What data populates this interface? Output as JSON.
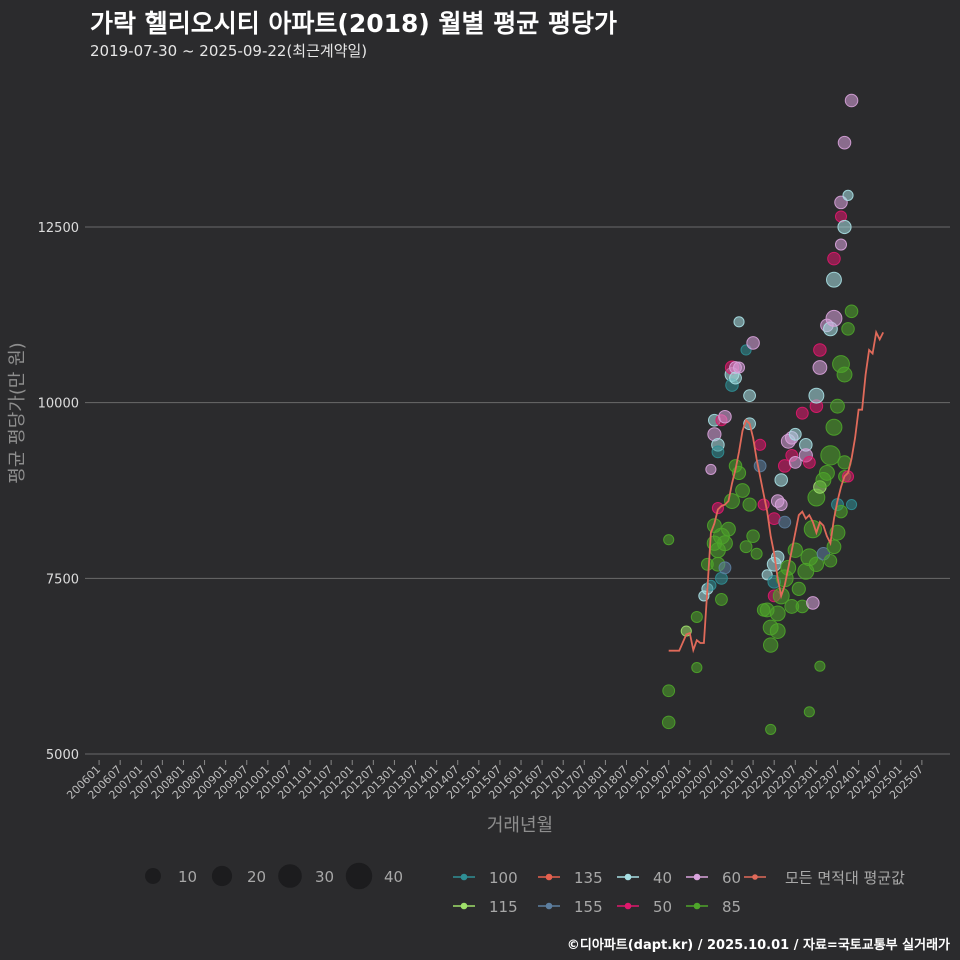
{
  "header": {
    "title": "가락 헬리오시티 아파트(2018) 월별 평균 평당가",
    "subtitle": "2019-07-30 ~ 2025-09-22(최근계약일)"
  },
  "credit": "©디아파트(dapt.kr) / 2025.10.01 / 자료=국토교통부 실거래가",
  "chart_data": {
    "type": "scatter",
    "xlabel": "거래년월",
    "ylabel": "평균 평당가(만 원)",
    "ylim": [
      5000,
      14600
    ],
    "y_ticks": [
      5000,
      7500,
      10000,
      12500
    ],
    "x_range": [
      "2005-09",
      "2026-03"
    ],
    "x_ticks": [
      "200601",
      "200607",
      "200701",
      "200707",
      "200801",
      "200807",
      "200901",
      "200907",
      "201001",
      "201007",
      "201101",
      "201107",
      "201201",
      "201207",
      "201301",
      "201307",
      "201401",
      "201407",
      "201501",
      "201507",
      "201601",
      "201607",
      "201701",
      "201707",
      "201801",
      "201807",
      "201901",
      "201907",
      "202001",
      "202007",
      "202101",
      "202107",
      "202201",
      "202207",
      "202301",
      "202307",
      "202401",
      "202407",
      "202501",
      "202507"
    ],
    "grid": "horizontal",
    "size_legend": [
      10,
      20,
      30,
      40
    ],
    "series": [
      {
        "name": "100",
        "color": "#2f8f95"
      },
      {
        "name": "135",
        "color": "#e6614f"
      },
      {
        "name": "40",
        "color": "#a8e0e4"
      },
      {
        "name": "60",
        "color": "#d9a3dc"
      },
      {
        "name": "115",
        "color": "#9fe06a"
      },
      {
        "name": "155",
        "color": "#5d7fa0"
      },
      {
        "name": "50",
        "color": "#e0186d"
      },
      {
        "name": "85",
        "color": "#4ea52a"
      }
    ],
    "average_line": {
      "name": "모든 면적대 평균값",
      "color": "#e06a5a",
      "points": [
        [
          "2019-07",
          6470
        ],
        [
          "2019-08",
          6470
        ],
        [
          "2019-09",
          6470
        ],
        [
          "2019-10",
          6470
        ],
        [
          "2019-12",
          6700
        ],
        [
          "2020-01",
          6720
        ],
        [
          "2020-02",
          6480
        ],
        [
          "2020-03",
          6620
        ],
        [
          "2020-04",
          6580
        ],
        [
          "2020-05",
          6580
        ],
        [
          "2020-06",
          7350
        ],
        [
          "2020-07",
          8150
        ],
        [
          "2020-08",
          8280
        ],
        [
          "2020-09",
          8480
        ],
        [
          "2020-10",
          8530
        ],
        [
          "2020-11",
          8550
        ],
        [
          "2020-12",
          8600
        ],
        [
          "2021-01",
          8850
        ],
        [
          "2021-02",
          9050
        ],
        [
          "2021-03",
          9300
        ],
        [
          "2021-04",
          9600
        ],
        [
          "2021-05",
          9750
        ],
        [
          "2021-06",
          9700
        ],
        [
          "2021-07",
          9500
        ],
        [
          "2021-08",
          9200
        ],
        [
          "2021-09",
          8950
        ],
        [
          "2021-10",
          8700
        ],
        [
          "2021-11",
          8450
        ],
        [
          "2021-12",
          8100
        ],
        [
          "2022-01",
          7850
        ],
        [
          "2022-02",
          7500
        ],
        [
          "2022-03",
          7250
        ],
        [
          "2022-04",
          7400
        ],
        [
          "2022-05",
          7650
        ],
        [
          "2022-06",
          7900
        ],
        [
          "2022-07",
          8150
        ],
        [
          "2022-08",
          8400
        ],
        [
          "2022-09",
          8450
        ],
        [
          "2022-10",
          8350
        ],
        [
          "2022-11",
          8400
        ],
        [
          "2022-12",
          8300
        ],
        [
          "2023-01",
          8150
        ],
        [
          "2023-02",
          8300
        ],
        [
          "2023-03",
          8250
        ],
        [
          "2023-04",
          8100
        ],
        [
          "2023-05",
          8000
        ],
        [
          "2023-06",
          8350
        ],
        [
          "2023-07",
          8600
        ],
        [
          "2023-08",
          8800
        ],
        [
          "2023-09",
          8950
        ],
        [
          "2023-10",
          9000
        ],
        [
          "2023-11",
          9200
        ],
        [
          "2023-12",
          9500
        ],
        [
          "2024-01",
          9900
        ],
        [
          "2024-02",
          9900
        ],
        [
          "2024-03",
          10400
        ],
        [
          "2024-04",
          10750
        ],
        [
          "2024-05",
          10700
        ],
        [
          "2024-06",
          11000
        ],
        [
          "2024-07",
          10900
        ],
        [
          "2024-08",
          11000
        ]
      ]
    },
    "points": [
      {
        "x": "2019-07",
        "y": 8050,
        "s": "85",
        "n": 3
      },
      {
        "x": "2019-07",
        "y": 5900,
        "s": "85",
        "n": 5
      },
      {
        "x": "2019-07",
        "y": 5450,
        "s": "85",
        "n": 6
      },
      {
        "x": "2019-12",
        "y": 6750,
        "s": "115",
        "n": 3
      },
      {
        "x": "2020-03",
        "y": 6950,
        "s": "85",
        "n": 4
      },
      {
        "x": "2020-03",
        "y": 6230,
        "s": "85",
        "n": 3
      },
      {
        "x": "2020-05",
        "y": 7250,
        "s": "40",
        "n": 3
      },
      {
        "x": "2020-06",
        "y": 7700,
        "s": "85",
        "n": 5
      },
      {
        "x": "2020-06",
        "y": 7350,
        "s": "40",
        "n": 4
      },
      {
        "x": "2020-07",
        "y": 7400,
        "s": "100",
        "n": 3
      },
      {
        "x": "2020-07",
        "y": 9050,
        "s": "60",
        "n": 3
      },
      {
        "x": "2020-08",
        "y": 8250,
        "s": "85",
        "n": 8
      },
      {
        "x": "2020-08",
        "y": 8000,
        "s": "85",
        "n": 9
      },
      {
        "x": "2020-08",
        "y": 9750,
        "s": "40",
        "n": 5
      },
      {
        "x": "2020-08",
        "y": 9550,
        "s": "60",
        "n": 7
      },
      {
        "x": "2020-09",
        "y": 7700,
        "s": "85",
        "n": 8
      },
      {
        "x": "2020-09",
        "y": 7900,
        "s": "85",
        "n": 10
      },
      {
        "x": "2020-09",
        "y": 9400,
        "s": "40",
        "n": 6
      },
      {
        "x": "2020-09",
        "y": 9300,
        "s": "100",
        "n": 5
      },
      {
        "x": "2020-09",
        "y": 8500,
        "s": "50",
        "n": 4
      },
      {
        "x": "2020-10",
        "y": 8100,
        "s": "85",
        "n": 12
      },
      {
        "x": "2020-10",
        "y": 7500,
        "s": "100",
        "n": 5
      },
      {
        "x": "2020-10",
        "y": 7200,
        "s": "85",
        "n": 5
      },
      {
        "x": "2020-10",
        "y": 9750,
        "s": "50",
        "n": 4
      },
      {
        "x": "2020-11",
        "y": 8000,
        "s": "85",
        "n": 10
      },
      {
        "x": "2020-11",
        "y": 7650,
        "s": "155",
        "n": 5
      },
      {
        "x": "2020-11",
        "y": 9800,
        "s": "60",
        "n": 6
      },
      {
        "x": "2020-12",
        "y": 8200,
        "s": "85",
        "n": 8
      },
      {
        "x": "2021-01",
        "y": 10400,
        "s": "40",
        "n": 8
      },
      {
        "x": "2021-01",
        "y": 10250,
        "s": "100",
        "n": 6
      },
      {
        "x": "2021-01",
        "y": 10500,
        "s": "50",
        "n": 7
      },
      {
        "x": "2021-01",
        "y": 8600,
        "s": "85",
        "n": 10
      },
      {
        "x": "2021-02",
        "y": 10500,
        "s": "60",
        "n": 5
      },
      {
        "x": "2021-02",
        "y": 10350,
        "s": "40",
        "n": 5
      },
      {
        "x": "2021-02",
        "y": 9100,
        "s": "85",
        "n": 6
      },
      {
        "x": "2021-03",
        "y": 11150,
        "s": "40",
        "n": 3
      },
      {
        "x": "2021-03",
        "y": 10500,
        "s": "60",
        "n": 4
      },
      {
        "x": "2021-03",
        "y": 9000,
        "s": "85",
        "n": 7
      },
      {
        "x": "2021-04",
        "y": 8750,
        "s": "85",
        "n": 8
      },
      {
        "x": "2021-05",
        "y": 10750,
        "s": "100",
        "n": 3
      },
      {
        "x": "2021-05",
        "y": 7950,
        "s": "85",
        "n": 5
      },
      {
        "x": "2021-06",
        "y": 10100,
        "s": "40",
        "n": 5
      },
      {
        "x": "2021-06",
        "y": 9700,
        "s": "40",
        "n": 5
      },
      {
        "x": "2021-06",
        "y": 8550,
        "s": "85",
        "n": 7
      },
      {
        "x": "2021-07",
        "y": 10850,
        "s": "60",
        "n": 6
      },
      {
        "x": "2021-07",
        "y": 8100,
        "s": "85",
        "n": 6
      },
      {
        "x": "2021-08",
        "y": 7850,
        "s": "85",
        "n": 4
      },
      {
        "x": "2021-09",
        "y": 9400,
        "s": "50",
        "n": 4
      },
      {
        "x": "2021-09",
        "y": 9100,
        "s": "155",
        "n": 5
      },
      {
        "x": "2021-10",
        "y": 8550,
        "s": "50",
        "n": 4
      },
      {
        "x": "2021-10",
        "y": 7050,
        "s": "85",
        "n": 6
      },
      {
        "x": "2021-11",
        "y": 7550,
        "s": "40",
        "n": 3
      },
      {
        "x": "2021-11",
        "y": 7050,
        "s": "85",
        "n": 8
      },
      {
        "x": "2021-12",
        "y": 6800,
        "s": "85",
        "n": 10
      },
      {
        "x": "2021-12",
        "y": 6550,
        "s": "85",
        "n": 9
      },
      {
        "x": "2021-12",
        "y": 5350,
        "s": "85",
        "n": 3
      },
      {
        "x": "2022-01",
        "y": 7700,
        "s": "40",
        "n": 8
      },
      {
        "x": "2022-01",
        "y": 7450,
        "s": "100",
        "n": 6
      },
      {
        "x": "2022-01",
        "y": 8350,
        "s": "50",
        "n": 5
      },
      {
        "x": "2022-01",
        "y": 7250,
        "s": "50",
        "n": 5
      },
      {
        "x": "2022-02",
        "y": 7800,
        "s": "40",
        "n": 6
      },
      {
        "x": "2022-02",
        "y": 8600,
        "s": "60",
        "n": 6
      },
      {
        "x": "2022-02",
        "y": 7000,
        "s": "85",
        "n": 10
      },
      {
        "x": "2022-02",
        "y": 6750,
        "s": "85",
        "n": 10
      },
      {
        "x": "2022-03",
        "y": 8900,
        "s": "40",
        "n": 6
      },
      {
        "x": "2022-03",
        "y": 8550,
        "s": "60",
        "n": 5
      },
      {
        "x": "2022-03",
        "y": 7250,
        "s": "85",
        "n": 12
      },
      {
        "x": "2022-04",
        "y": 9100,
        "s": "50",
        "n": 6
      },
      {
        "x": "2022-04",
        "y": 7500,
        "s": "85",
        "n": 14
      },
      {
        "x": "2022-04",
        "y": 8300,
        "s": "155",
        "n": 5
      },
      {
        "x": "2022-05",
        "y": 9450,
        "s": "60",
        "n": 8
      },
      {
        "x": "2022-05",
        "y": 7650,
        "s": "85",
        "n": 10
      },
      {
        "x": "2022-06",
        "y": 9500,
        "s": "60",
        "n": 6
      },
      {
        "x": "2022-06",
        "y": 9250,
        "s": "50",
        "n": 5
      },
      {
        "x": "2022-06",
        "y": 7100,
        "s": "85",
        "n": 8
      },
      {
        "x": "2022-07",
        "y": 9550,
        "s": "40",
        "n": 5
      },
      {
        "x": "2022-07",
        "y": 9150,
        "s": "60",
        "n": 5
      },
      {
        "x": "2022-07",
        "y": 7900,
        "s": "85",
        "n": 9
      },
      {
        "x": "2022-08",
        "y": 7350,
        "s": "85",
        "n": 7
      },
      {
        "x": "2022-09",
        "y": 9850,
        "s": "50",
        "n": 5
      },
      {
        "x": "2022-09",
        "y": 7100,
        "s": "85",
        "n": 6
      },
      {
        "x": "2022-10",
        "y": 9400,
        "s": "40",
        "n": 6
      },
      {
        "x": "2022-10",
        "y": 9250,
        "s": "60",
        "n": 7
      },
      {
        "x": "2022-10",
        "y": 7600,
        "s": "85",
        "n": 12
      },
      {
        "x": "2022-11",
        "y": 9150,
        "s": "50",
        "n": 5
      },
      {
        "x": "2022-11",
        "y": 7800,
        "s": "85",
        "n": 14
      },
      {
        "x": "2022-11",
        "y": 5600,
        "s": "85",
        "n": 3
      },
      {
        "x": "2022-12",
        "y": 8200,
        "s": "85",
        "n": 15
      },
      {
        "x": "2022-12",
        "y": 7150,
        "s": "60",
        "n": 6
      },
      {
        "x": "2023-01",
        "y": 9950,
        "s": "50",
        "n": 6
      },
      {
        "x": "2023-01",
        "y": 10100,
        "s": "40",
        "n": 10
      },
      {
        "x": "2023-01",
        "y": 8650,
        "s": "85",
        "n": 14
      },
      {
        "x": "2023-01",
        "y": 7700,
        "s": "85",
        "n": 9
      },
      {
        "x": "2023-02",
        "y": 10500,
        "s": "60",
        "n": 8
      },
      {
        "x": "2023-02",
        "y": 10750,
        "s": "50",
        "n": 6
      },
      {
        "x": "2023-02",
        "y": 8800,
        "s": "115",
        "n": 6
      },
      {
        "x": "2023-02",
        "y": 6250,
        "s": "85",
        "n": 3
      },
      {
        "x": "2023-03",
        "y": 8900,
        "s": "85",
        "n": 10
      },
      {
        "x": "2023-03",
        "y": 7850,
        "s": "155",
        "n": 6
      },
      {
        "x": "2023-04",
        "y": 9000,
        "s": "85",
        "n": 10
      },
      {
        "x": "2023-04",
        "y": 11100,
        "s": "60",
        "n": 6
      },
      {
        "x": "2023-05",
        "y": 11050,
        "s": "40",
        "n": 8
      },
      {
        "x": "2023-05",
        "y": 9250,
        "s": "85",
        "n": 20
      },
      {
        "x": "2023-05",
        "y": 7750,
        "s": "85",
        "n": 6
      },
      {
        "x": "2023-06",
        "y": 11200,
        "s": "60",
        "n": 12
      },
      {
        "x": "2023-06",
        "y": 11750,
        "s": "40",
        "n": 10
      },
      {
        "x": "2023-06",
        "y": 12050,
        "s": "50",
        "n": 6
      },
      {
        "x": "2023-06",
        "y": 9650,
        "s": "85",
        "n": 12
      },
      {
        "x": "2023-06",
        "y": 7950,
        "s": "85",
        "n": 8
      },
      {
        "x": "2023-07",
        "y": 9950,
        "s": "85",
        "n": 8
      },
      {
        "x": "2023-07",
        "y": 8150,
        "s": "85",
        "n": 10
      },
      {
        "x": "2023-07",
        "y": 8550,
        "s": "100",
        "n": 5
      },
      {
        "x": "2023-08",
        "y": 12250,
        "s": "60",
        "n": 4
      },
      {
        "x": "2023-08",
        "y": 12650,
        "s": "50",
        "n": 4
      },
      {
        "x": "2023-08",
        "y": 12850,
        "s": "60",
        "n": 6
      },
      {
        "x": "2023-08",
        "y": 10550,
        "s": "85",
        "n": 14
      },
      {
        "x": "2023-08",
        "y": 8450,
        "s": "85",
        "n": 6
      },
      {
        "x": "2023-09",
        "y": 13700,
        "s": "60",
        "n": 6
      },
      {
        "x": "2023-09",
        "y": 12500,
        "s": "40",
        "n": 7
      },
      {
        "x": "2023-09",
        "y": 10400,
        "s": "85",
        "n": 10
      },
      {
        "x": "2023-09",
        "y": 9150,
        "s": "85",
        "n": 7
      },
      {
        "x": "2023-09",
        "y": 8950,
        "s": "85",
        "n": 5
      },
      {
        "x": "2023-10",
        "y": 12950,
        "s": "40",
        "n": 3
      },
      {
        "x": "2023-10",
        "y": 11050,
        "s": "85",
        "n": 6
      },
      {
        "x": "2023-10",
        "y": 8950,
        "s": "50",
        "n": 4
      },
      {
        "x": "2023-11",
        "y": 11300,
        "s": "85",
        "n": 6
      },
      {
        "x": "2023-11",
        "y": 14300,
        "s": "60",
        "n": 6
      },
      {
        "x": "2023-11",
        "y": 8550,
        "s": "100",
        "n": 3
      }
    ]
  }
}
